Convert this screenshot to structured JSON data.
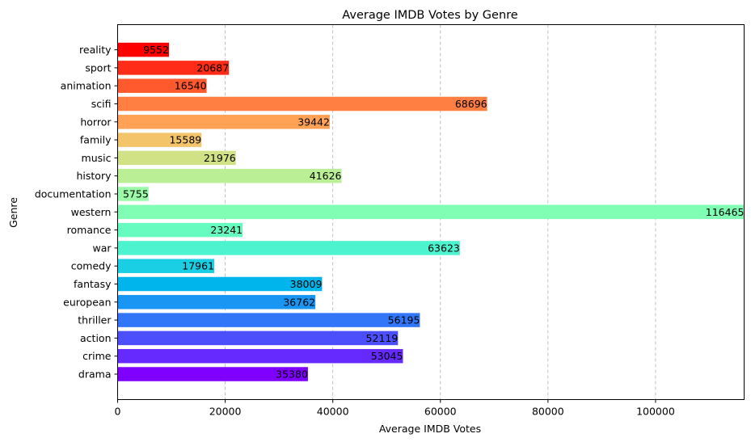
{
  "chart_data": {
    "type": "bar",
    "orientation": "horizontal",
    "title": "Average IMDB Votes by Genre",
    "xlabel": "Average IMDB Votes",
    "ylabel": "Genre",
    "xlim": [
      0,
      116465
    ],
    "xticks": [
      0,
      20000,
      40000,
      60000,
      80000,
      100000
    ],
    "xtick_labels": [
      "0",
      "20000",
      "40000",
      "60000",
      "80000",
      "100000"
    ],
    "grid": "x-axis dashed",
    "categories": [
      "drama",
      "crime",
      "action",
      "thriller",
      "european",
      "fantasy",
      "comedy",
      "war",
      "romance",
      "western",
      "documentation",
      "history",
      "music",
      "family",
      "horror",
      "scifi",
      "animation",
      "sport",
      "reality"
    ],
    "values": [
      35380,
      53045,
      52119,
      56195,
      36762,
      38009,
      17961,
      63623,
      23241,
      116465,
      5755,
      41626,
      21976,
      15589,
      39442,
      68696,
      16540,
      20687,
      9552
    ],
    "value_labels": [
      "35380",
      "53045",
      "52119",
      "56195",
      "36762",
      "38009",
      "17961",
      "63623",
      "23241",
      "116465",
      "5755",
      "41626",
      "21976",
      "15589",
      "39442",
      "68696",
      "16540",
      "20687",
      "9552"
    ],
    "colors": [
      "#8000ff",
      "#6629fe",
      "#4c50fc",
      "#3176f8",
      "#1996f3",
      "#00b5eb",
      "#1acfe3",
      "#4df3ce",
      "#66fcbf",
      "#80ffb4",
      "#9afaa8",
      "#bbef96",
      "#d1e186",
      "#f3c46a",
      "#ffa256",
      "#ff7e41",
      "#ff5a2e",
      "#ff2d17",
      "#ff0000"
    ]
  }
}
